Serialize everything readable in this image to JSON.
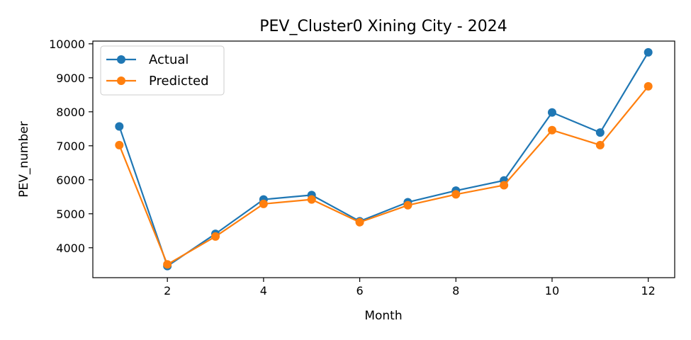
{
  "chart_data": {
    "type": "line",
    "title": "PEV_Cluster0 Xining City - 2024",
    "xlabel": "Month",
    "ylabel": "PEV_number",
    "x": [
      1,
      2,
      3,
      4,
      5,
      6,
      7,
      8,
      9,
      10,
      11,
      12
    ],
    "xlim": [
      0.45,
      12.55
    ],
    "ylim": [
      3120,
      10080
    ],
    "xticks": [
      2,
      4,
      6,
      8,
      10,
      12
    ],
    "yticks": [
      4000,
      5000,
      6000,
      7000,
      8000,
      9000,
      10000
    ],
    "grid": false,
    "legend_position": "top-left",
    "series": [
      {
        "name": "Actual",
        "color": "#1f77b4",
        "marker": "circle",
        "values": [
          7570,
          3460,
          4410,
          5420,
          5550,
          4780,
          5340,
          5680,
          5980,
          7980,
          7390,
          9750
        ]
      },
      {
        "name": "Predicted",
        "color": "#ff7f0e",
        "marker": "circle",
        "values": [
          7020,
          3510,
          4330,
          5290,
          5420,
          4750,
          5250,
          5570,
          5840,
          7460,
          7020,
          8750
        ]
      }
    ]
  }
}
